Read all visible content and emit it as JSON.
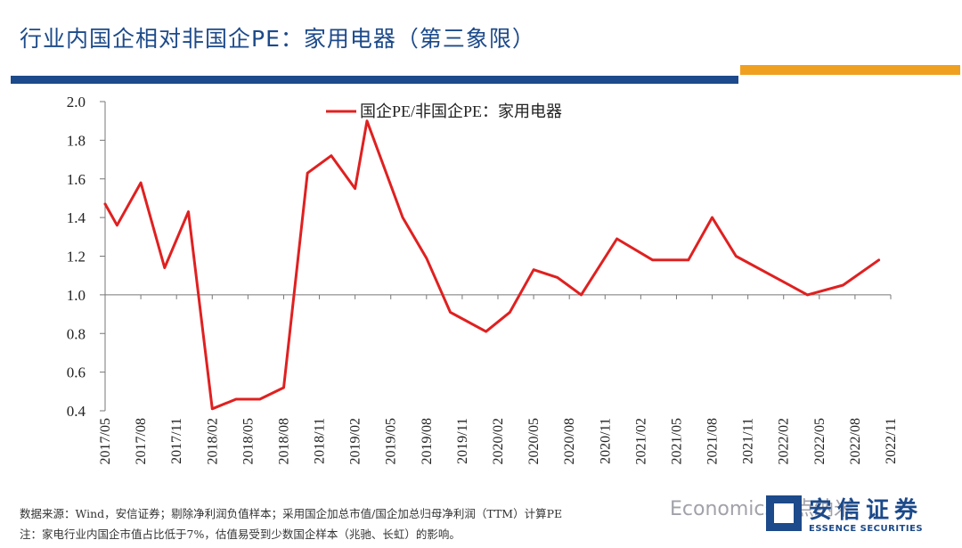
{
  "header": {
    "title": "行业内国企相对非国企PE：家用电器（第三象限）",
    "bar_blue_color": "#1c4a8a",
    "bar_orange_color": "#f0a020"
  },
  "chart_data": {
    "type": "line",
    "title": "",
    "xlabel": "",
    "ylabel": "",
    "ylim": [
      0.4,
      2.0
    ],
    "yticks": [
      "0.4",
      "0.6",
      "0.8",
      "1.0",
      "1.2",
      "1.4",
      "1.6",
      "1.8",
      "2.0"
    ],
    "xticks": [
      "2017/05",
      "2017/08",
      "2017/11",
      "2018/02",
      "2018/05",
      "2018/08",
      "2018/11",
      "2019/02",
      "2019/05",
      "2019/08",
      "2019/11",
      "2020/02",
      "2020/05",
      "2020/08",
      "2020/11",
      "2021/02",
      "2021/05",
      "2021/08",
      "2021/11",
      "2022/02",
      "2022/05",
      "2022/08",
      "2022/11"
    ],
    "legend_position": "top",
    "grid": false,
    "reference_line": 1.0,
    "series": [
      {
        "name": "国企PE/非国企PE：家用电器",
        "color": "#e02020",
        "x": [
          "2017/05",
          "2017/06",
          "2017/08",
          "2017/10",
          "2017/12",
          "2018/02",
          "2018/04",
          "2018/06",
          "2018/08",
          "2018/10",
          "2018/12",
          "2019/02",
          "2019/03",
          "2019/06",
          "2019/08",
          "2019/10",
          "2020/01",
          "2020/03",
          "2020/05",
          "2020/07",
          "2020/09",
          "2020/12",
          "2021/03",
          "2021/06",
          "2021/08",
          "2021/10",
          "2022/01",
          "2022/04",
          "2022/07",
          "2022/10"
        ],
        "values": [
          1.47,
          1.36,
          1.58,
          1.14,
          1.43,
          0.41,
          0.46,
          0.46,
          0.52,
          1.63,
          1.72,
          1.55,
          1.9,
          1.4,
          1.19,
          0.91,
          0.81,
          0.91,
          1.13,
          1.09,
          1.0,
          1.29,
          1.18,
          1.18,
          1.4,
          1.2,
          1.1,
          1.0,
          1.05,
          1.18
        ]
      }
    ]
  },
  "notes": {
    "source": "数据来源：Wind，安信证券；剔除净利润负值样本；采用国企加总市值/国企加总归母净利润（TTM）计算PE",
    "note": "注：家电行业内国企市值占比低于7%，估值易受到少数国企样本（兆驰、长虹）的影响。"
  },
  "watermark": "Economics一点纳米",
  "logo": {
    "name_cn": "安信证券",
    "name_en": "ESSENCE SECURITIES"
  }
}
